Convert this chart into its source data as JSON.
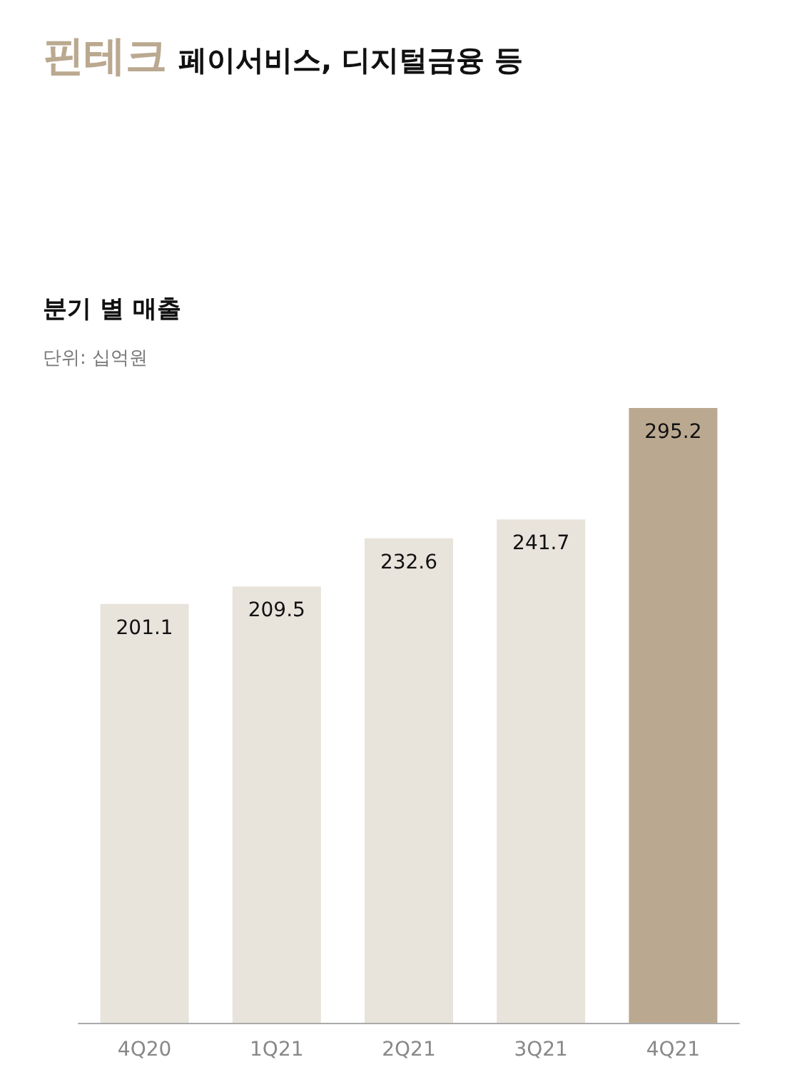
{
  "chart_data": {
    "type": "bar",
    "title": "핀테크",
    "subtitle": "페이서비스, 디지털금융 등",
    "annotations": [
      "분기 별 매출",
      "단위: 십억원"
    ],
    "categories": [
      "4Q20",
      "1Q21",
      "2Q21",
      "3Q21",
      "4Q21"
    ],
    "values": [
      201.1,
      209.5,
      232.6,
      241.7,
      295.2
    ],
    "colors": [
      "#e8e3db",
      "#e8e3db",
      "#e8e3db",
      "#e8e3db",
      "#baa990"
    ],
    "data_labels": true
  }
}
